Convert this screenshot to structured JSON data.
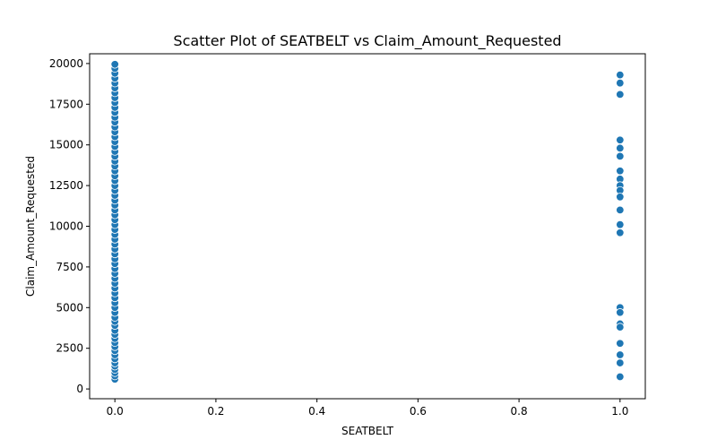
{
  "chart_data": {
    "type": "scatter",
    "title": "Scatter Plot of SEATBELT vs Claim_Amount_Requested",
    "xlabel": "SEATBELT",
    "ylabel": "Claim_Amount_Requested",
    "xlim": [
      -0.05,
      1.05
    ],
    "ylim": [
      -600,
      20600
    ],
    "xticks": [
      0.0,
      0.2,
      0.4,
      0.6,
      0.8,
      1.0
    ],
    "xtick_labels": [
      "0.0",
      "0.2",
      "0.4",
      "0.6",
      "0.8",
      "1.0"
    ],
    "yticks": [
      0,
      2500,
      5000,
      7500,
      10000,
      12500,
      15000,
      17500,
      20000
    ],
    "ytick_labels": [
      "0",
      "2500",
      "5000",
      "7500",
      "10000",
      "12500",
      "15000",
      "17500",
      "20000"
    ],
    "grid": false,
    "marker_color": "#1f77b4",
    "marker_edge_color": "#ffffff",
    "points": [
      {
        "x": 0,
        "y": 600
      },
      {
        "x": 0,
        "y": 800
      },
      {
        "x": 0,
        "y": 1000
      },
      {
        "x": 0,
        "y": 1200
      },
      {
        "x": 0,
        "y": 1400
      },
      {
        "x": 0,
        "y": 1600
      },
      {
        "x": 0,
        "y": 1850
      },
      {
        "x": 0,
        "y": 2100
      },
      {
        "x": 0,
        "y": 2350
      },
      {
        "x": 0,
        "y": 2600
      },
      {
        "x": 0,
        "y": 2850
      },
      {
        "x": 0,
        "y": 3100
      },
      {
        "x": 0,
        "y": 3350
      },
      {
        "x": 0,
        "y": 3600
      },
      {
        "x": 0,
        "y": 3900
      },
      {
        "x": 0,
        "y": 4150
      },
      {
        "x": 0,
        "y": 4400
      },
      {
        "x": 0,
        "y": 4700
      },
      {
        "x": 0,
        "y": 5000
      },
      {
        "x": 0,
        "y": 5300
      },
      {
        "x": 0,
        "y": 5600
      },
      {
        "x": 0,
        "y": 5900
      },
      {
        "x": 0,
        "y": 6200
      },
      {
        "x": 0,
        "y": 6500
      },
      {
        "x": 0,
        "y": 6800
      },
      {
        "x": 0,
        "y": 7100
      },
      {
        "x": 0,
        "y": 7400
      },
      {
        "x": 0,
        "y": 7700
      },
      {
        "x": 0,
        "y": 8000
      },
      {
        "x": 0,
        "y": 8300
      },
      {
        "x": 0,
        "y": 8600
      },
      {
        "x": 0,
        "y": 8900
      },
      {
        "x": 0,
        "y": 9200
      },
      {
        "x": 0,
        "y": 9500
      },
      {
        "x": 0,
        "y": 9800
      },
      {
        "x": 0,
        "y": 10100
      },
      {
        "x": 0,
        "y": 10400
      },
      {
        "x": 0,
        "y": 10700
      },
      {
        "x": 0,
        "y": 11000
      },
      {
        "x": 0,
        "y": 11300
      },
      {
        "x": 0,
        "y": 11600
      },
      {
        "x": 0,
        "y": 11900
      },
      {
        "x": 0,
        "y": 12200
      },
      {
        "x": 0,
        "y": 12500
      },
      {
        "x": 0,
        "y": 12800
      },
      {
        "x": 0,
        "y": 13100
      },
      {
        "x": 0,
        "y": 13400
      },
      {
        "x": 0,
        "y": 13700
      },
      {
        "x": 0,
        "y": 14000
      },
      {
        "x": 0,
        "y": 14300
      },
      {
        "x": 0,
        "y": 14600
      },
      {
        "x": 0,
        "y": 14900
      },
      {
        "x": 0,
        "y": 15200
      },
      {
        "x": 0,
        "y": 15500
      },
      {
        "x": 0,
        "y": 15800
      },
      {
        "x": 0,
        "y": 16100
      },
      {
        "x": 0,
        "y": 16400
      },
      {
        "x": 0,
        "y": 16700
      },
      {
        "x": 0,
        "y": 17000
      },
      {
        "x": 0,
        "y": 17300
      },
      {
        "x": 0,
        "y": 17600
      },
      {
        "x": 0,
        "y": 17900
      },
      {
        "x": 0,
        "y": 18200
      },
      {
        "x": 0,
        "y": 18500
      },
      {
        "x": 0,
        "y": 18800
      },
      {
        "x": 0,
        "y": 19100
      },
      {
        "x": 0,
        "y": 19400
      },
      {
        "x": 0,
        "y": 19700
      },
      {
        "x": 0,
        "y": 19950
      },
      {
        "x": 1,
        "y": 19300
      },
      {
        "x": 1,
        "y": 18800
      },
      {
        "x": 1,
        "y": 18100
      },
      {
        "x": 1,
        "y": 15300
      },
      {
        "x": 1,
        "y": 14800
      },
      {
        "x": 1,
        "y": 14300
      },
      {
        "x": 1,
        "y": 13400
      },
      {
        "x": 1,
        "y": 12900
      },
      {
        "x": 1,
        "y": 12500
      },
      {
        "x": 1,
        "y": 12200
      },
      {
        "x": 1,
        "y": 11800
      },
      {
        "x": 1,
        "y": 11000
      },
      {
        "x": 1,
        "y": 10100
      },
      {
        "x": 1,
        "y": 9600
      },
      {
        "x": 1,
        "y": 5000
      },
      {
        "x": 1,
        "y": 4700
      },
      {
        "x": 1,
        "y": 4000
      },
      {
        "x": 1,
        "y": 3800
      },
      {
        "x": 1,
        "y": 2800
      },
      {
        "x": 1,
        "y": 2100
      },
      {
        "x": 1,
        "y": 1600
      },
      {
        "x": 1,
        "y": 750
      }
    ]
  }
}
